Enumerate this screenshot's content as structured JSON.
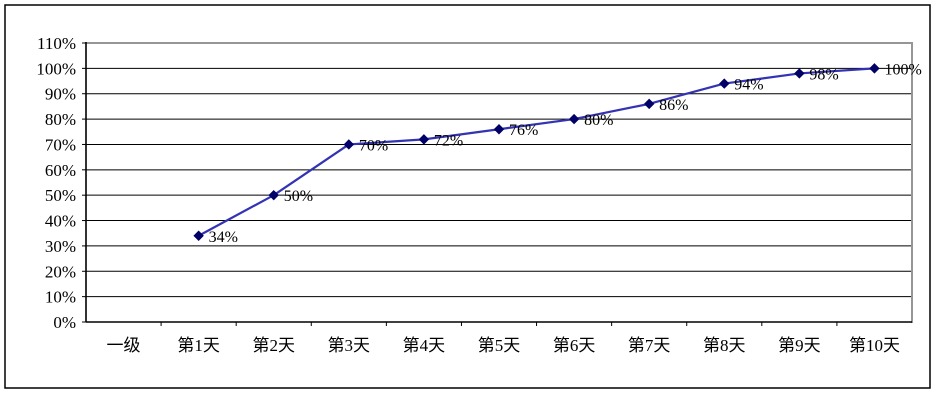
{
  "chart_data": {
    "type": "line",
    "title": "",
    "xlabel": "",
    "ylabel": "",
    "categories": [
      "一级",
      "第1天",
      "第2天",
      "第3天",
      "第4天",
      "第5天",
      "第6天",
      "第7天",
      "第8天",
      "第9天",
      "第10天"
    ],
    "series": [
      {
        "values": [
          null,
          34,
          50,
          70,
          72,
          76,
          80,
          86,
          94,
          98,
          100
        ],
        "data_labels": [
          null,
          "34%",
          "50%",
          "70%",
          "72%",
          "76%",
          "80%",
          "86%",
          "94%",
          "98%",
          "100%"
        ]
      }
    ],
    "y_ticks": [
      "0%",
      "10%",
      "20%",
      "30%",
      "40%",
      "50%",
      "60%",
      "70%",
      "80%",
      "90%",
      "100%",
      "110%"
    ],
    "y_tick_values": [
      0,
      10,
      20,
      30,
      40,
      50,
      60,
      70,
      80,
      90,
      100,
      110
    ],
    "ylim": [
      0,
      110
    ],
    "grid": "horizontal",
    "legend": "none",
    "marker": "diamond"
  },
  "colors": {
    "line": "#3333B4",
    "marker": "#000066",
    "gridline": "#000000",
    "axis": "#000000",
    "plot_border": "#969696",
    "outer_border": "#000000",
    "text": "#000000",
    "background": "#ffffff"
  }
}
